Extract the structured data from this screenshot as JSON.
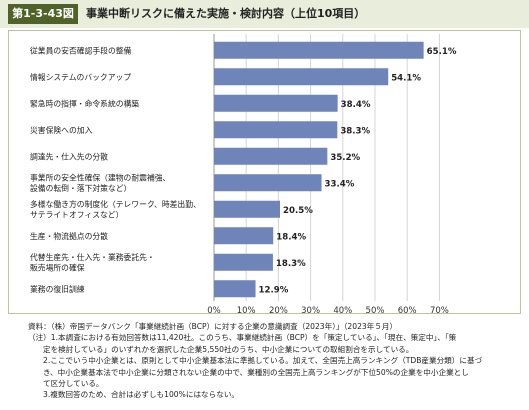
{
  "header": {
    "figure_label": "第1-3-43図",
    "title": "事業中断リスクに備えた実施・検討内容（上位10項目）"
  },
  "colors": {
    "bar": "#6f84b9",
    "header_bg": "#e8eedb",
    "label_bg": "#4f6228"
  },
  "chart_data": {
    "type": "bar",
    "orientation": "horizontal",
    "categories": [
      [
        "従業員の安否確認手段の整備"
      ],
      [
        "情報システムのバックアップ"
      ],
      [
        "緊急時の指揮・命令系統の構築"
      ],
      [
        "災害保険への加入"
      ],
      [
        "調達先・仕入先の分散"
      ],
      [
        "事業所の安全性確保（建物の耐震補強、",
        "設備の転倒・落下対策など）"
      ],
      [
        "多様な働き方の制度化（テレワーク、時差出勤、",
        "サテライトオフィスなど）"
      ],
      [
        "生産・物流拠点の分散"
      ],
      [
        "代替生産先・仕入先・業務委託先・",
        "販売場所の確保"
      ],
      [
        "業務の復旧訓練"
      ]
    ],
    "values": [
      65.1,
      54.1,
      38.4,
      38.3,
      35.2,
      33.4,
      20.5,
      18.4,
      18.3,
      12.9
    ],
    "value_labels": [
      "65.1%",
      "54.1%",
      "38.4%",
      "38.3%",
      "35.2%",
      "33.4%",
      "20.5%",
      "18.4%",
      "18.3%",
      "12.9%"
    ],
    "xlim": [
      0,
      70
    ],
    "xticks": [
      0,
      10,
      20,
      30,
      40,
      50,
      60,
      70
    ],
    "xtick_labels": [
      "0%",
      "10%",
      "20%",
      "30%",
      "40%",
      "50%",
      "60%",
      "70%"
    ],
    "grid": true
  },
  "notes": [
    "資料：（株）帝国データバンク「事業継続計画（BCP）に対する企業の意識調査（2023年）」（2023年５月）",
    "（注）1.本調査における有効回答数は11,420社。このうち、事業継続計画（BCP）を「策定している」、「現在、策定中」、「策",
    "定を検討している」のいずれかを選択した企業5,550社のうち、中小企業についての取組割合を示している。",
    "2.ここでいう中小企業とは、原則として中小企業基本法に準拠している。加えて、全国売上高ランキング（TDB産業分類）に基づ",
    "き、中小企業基本法で中小企業に分類されない企業の中で、業種別の全国売上高ランキングが下位50%の企業を中小企業とし",
    "て区分している。",
    "3.複数回答のため、合計は必ずしも100%にはならない。"
  ]
}
